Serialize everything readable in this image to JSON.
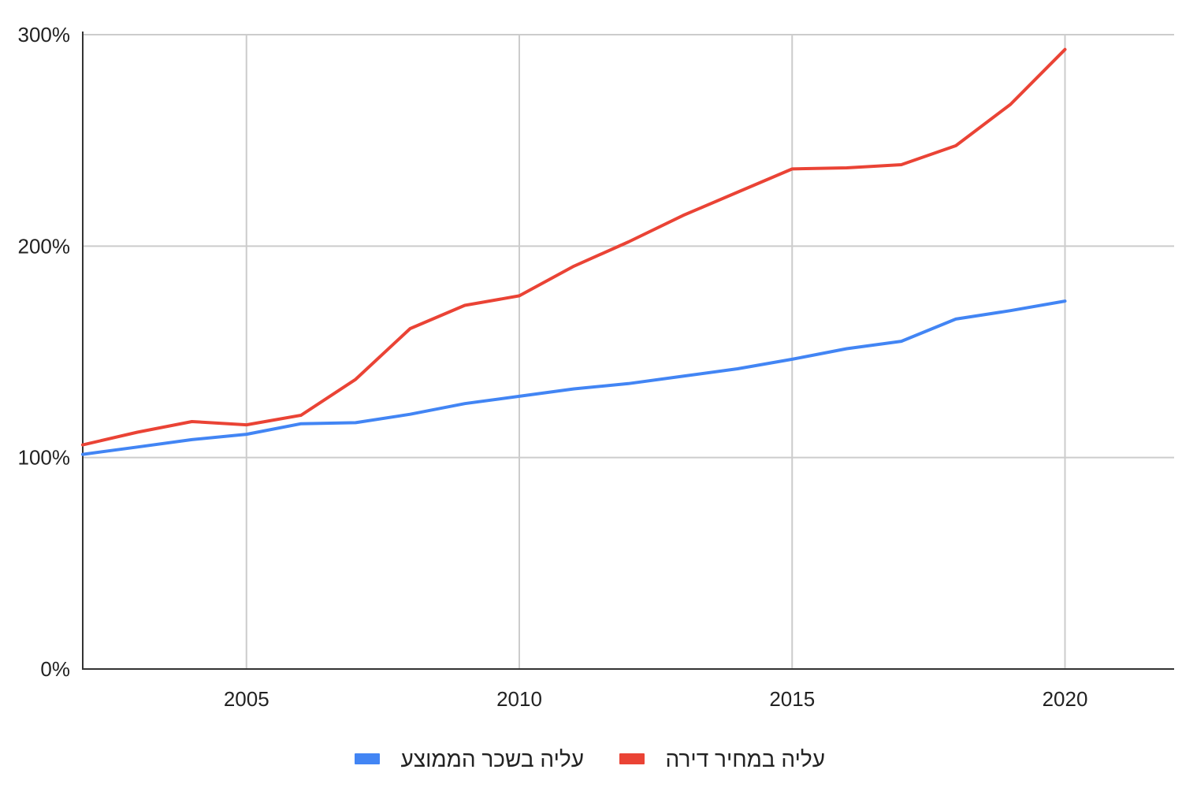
{
  "chart_data": {
    "type": "line",
    "title": "",
    "xlabel": "",
    "ylabel": "",
    "xlim": [
      2002,
      2022
    ],
    "ylim": [
      0,
      300
    ],
    "x_ticks": [
      2005,
      2010,
      2015,
      2020
    ],
    "x_tick_labels": [
      "2005",
      "2010",
      "2015",
      "2020"
    ],
    "y_ticks": [
      0,
      100,
      200,
      300
    ],
    "y_tick_labels": [
      "0%",
      "100%",
      "200%",
      "300%"
    ],
    "grid": true,
    "legend_position": "bottom",
    "x": [
      2002,
      2003,
      2004,
      2005,
      2006,
      2007,
      2008,
      2009,
      2010,
      2011,
      2012,
      2013,
      2014,
      2015,
      2016,
      2017,
      2018,
      2019,
      2020
    ],
    "series": [
      {
        "name": "עליה בשכר הממוצע",
        "color": "#4285F4",
        "values": [
          101.5,
          105,
          108.5,
          111,
          116,
          116.5,
          120.5,
          125.5,
          129,
          132.5,
          135,
          138.5,
          142,
          146.5,
          151.5,
          155,
          165.5,
          169.5,
          174
        ]
      },
      {
        "name": "עליה במחיר דירה",
        "color": "#EA4335",
        "values": [
          106,
          112,
          117,
          115.5,
          120,
          137,
          161,
          172,
          176.5,
          190.5,
          202,
          214.5,
          225.5,
          236.5,
          237,
          238.5,
          247.5,
          267,
          293
        ]
      }
    ]
  }
}
